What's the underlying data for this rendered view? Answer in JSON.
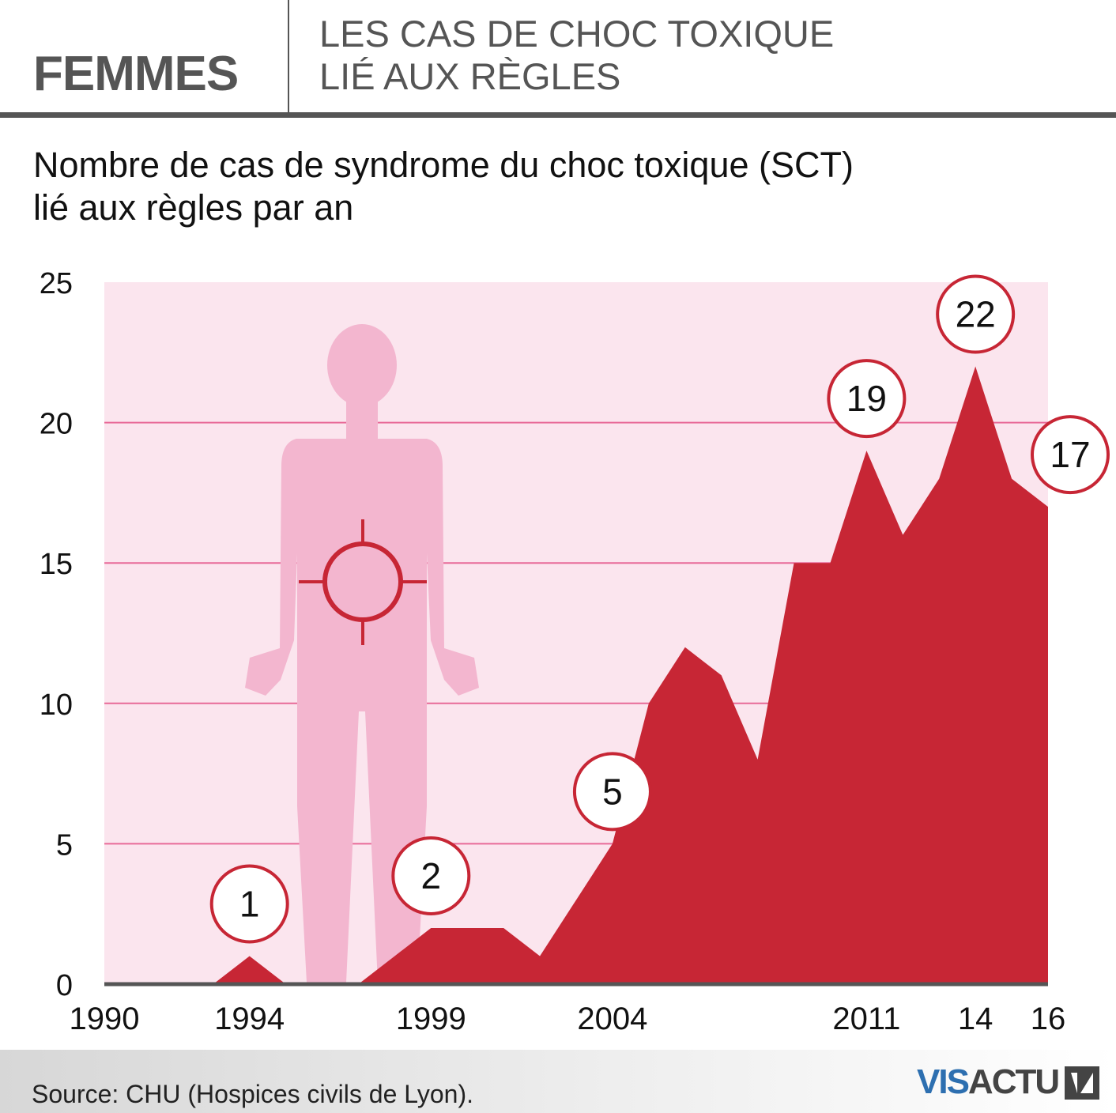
{
  "header": {
    "section_label": "FEMMES",
    "headline_line1": "LES CAS DE CHOC TOXIQUE",
    "headline_line2": "LIÉ AUX RÈGLES"
  },
  "subtitle_line1": "Nombre de cas de syndrome du choc toxique (SCT)",
  "subtitle_line2": "lié aux règles par an",
  "chart_data": {
    "type": "area",
    "ylim": [
      0,
      25
    ],
    "yticks": [
      0,
      5,
      10,
      15,
      20,
      25
    ],
    "grid": true,
    "x": [
      1990,
      1991,
      1992,
      1993,
      1994,
      1995,
      1996,
      1997,
      1998,
      1999,
      2000,
      2001,
      2002,
      2003,
      2004,
      2005,
      2006,
      2007,
      2008,
      2009,
      2010,
      2011,
      2012,
      2013,
      2014,
      2015,
      2016
    ],
    "values": [
      0,
      0,
      0,
      0,
      1,
      0,
      0,
      0,
      1,
      2,
      2,
      2,
      1,
      3,
      5,
      10,
      12,
      11,
      8,
      15,
      15,
      19,
      16,
      18,
      22,
      18,
      17
    ],
    "xtick_labels": [
      {
        "year": 1990,
        "label": "1990"
      },
      {
        "year": 1994,
        "label": "1994"
      },
      {
        "year": 1999,
        "label": "1999"
      },
      {
        "year": 2004,
        "label": "2004"
      },
      {
        "year": 2011,
        "label": "2011"
      },
      {
        "year": 2014,
        "label": "14"
      },
      {
        "year": 2016,
        "label": "16"
      }
    ],
    "callouts": [
      {
        "year": 1994,
        "value": 1,
        "label": "1"
      },
      {
        "year": 1999,
        "value": 2,
        "label": "2"
      },
      {
        "year": 2004,
        "value": 5,
        "label": "5"
      },
      {
        "year": 2011,
        "value": 19,
        "label": "19"
      },
      {
        "year": 2014,
        "value": 22,
        "label": "22"
      },
      {
        "year": 2016,
        "value": 17,
        "label": "17"
      }
    ],
    "colors": {
      "area": "#c72635",
      "plot_bg": "#fbe5ee",
      "grid": "#e86a98",
      "silhouette": "#f3b6cf",
      "target": "#c72635",
      "axis": "#555555"
    }
  },
  "footer": {
    "source": "Source: CHU (Hospices civils de Lyon).",
    "logo_vis": "VIS",
    "logo_actu": "ACTU"
  }
}
